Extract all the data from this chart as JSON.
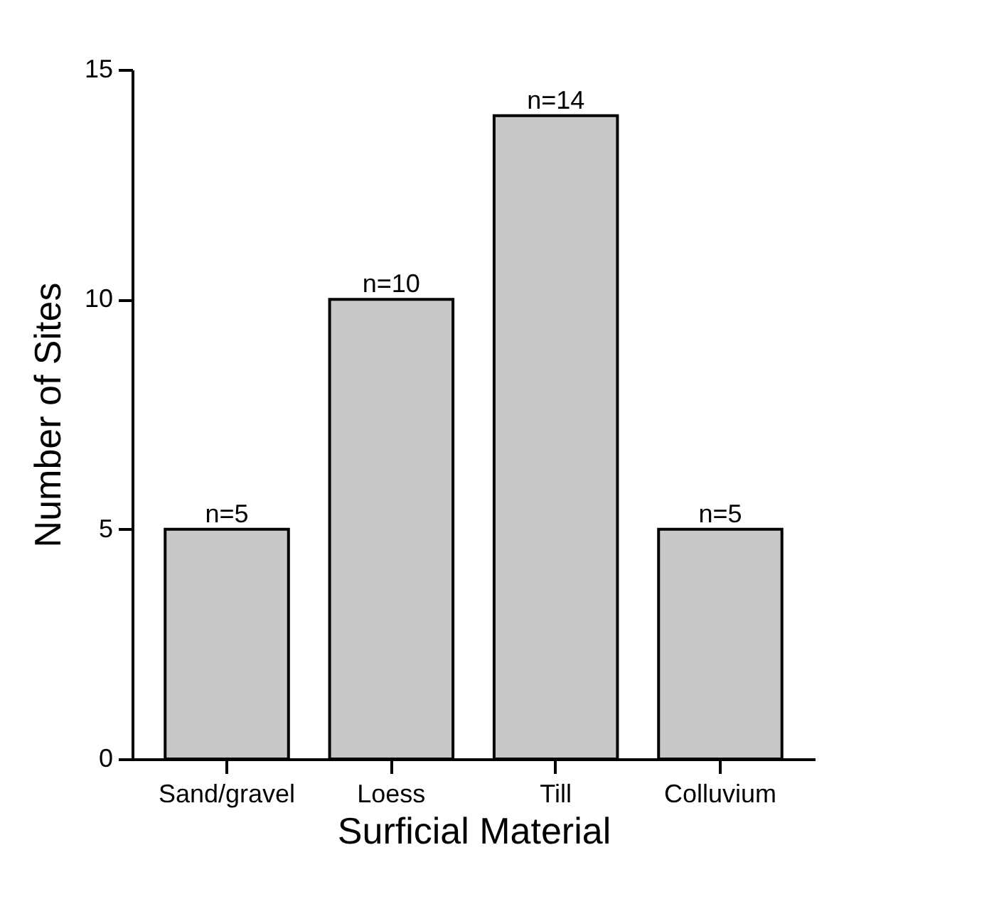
{
  "chart_data": {
    "type": "bar",
    "xlabel": "Surficial Material",
    "ylabel": "Number of Sites",
    "categories": [
      "Sand/gravel",
      "Loess",
      "Till",
      "Colluvium"
    ],
    "values": [
      5,
      10,
      14,
      5
    ],
    "value_labels": [
      "n=5",
      "n=10",
      "n=14",
      "n=5"
    ],
    "color": "#c8c8c8",
    "ylim": [
      0,
      15
    ],
    "yticks": [
      0,
      5,
      10,
      15
    ],
    "grid": false
  }
}
